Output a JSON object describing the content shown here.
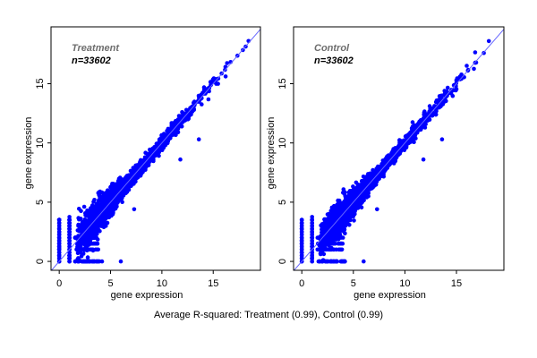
{
  "chart_data": [
    {
      "type": "scatter",
      "title": "Treatment",
      "subtitle": "n=33602",
      "n": 33602,
      "xlabel": "gene expression",
      "ylabel": "gene expression",
      "xlim": [
        -0.8,
        19.6
      ],
      "ylim": [
        -0.75,
        19.8
      ],
      "xticks": [
        "0",
        "5",
        "10",
        "15"
      ],
      "yticks": [
        "0",
        "5",
        "10",
        "15"
      ],
      "reference_line": "y = x",
      "grid": false,
      "point_color": "#0000ff",
      "line_color": "#6666ff"
    },
    {
      "type": "scatter",
      "title": "Control",
      "subtitle": "n=33602",
      "n": 33602,
      "xlabel": "gene expression",
      "ylabel": "gene expression",
      "xlim": [
        -0.8,
        19.6
      ],
      "ylim": [
        -0.75,
        19.8
      ],
      "xticks": [
        "0",
        "5",
        "10",
        "15"
      ],
      "yticks": [
        "0",
        "5",
        "10",
        "15"
      ],
      "reference_line": "y = x",
      "grid": false,
      "point_color": "#0000ff",
      "line_color": "#6666ff"
    }
  ],
  "caption": "Average R-squared: Treatment (0.99), Control (0.99)"
}
